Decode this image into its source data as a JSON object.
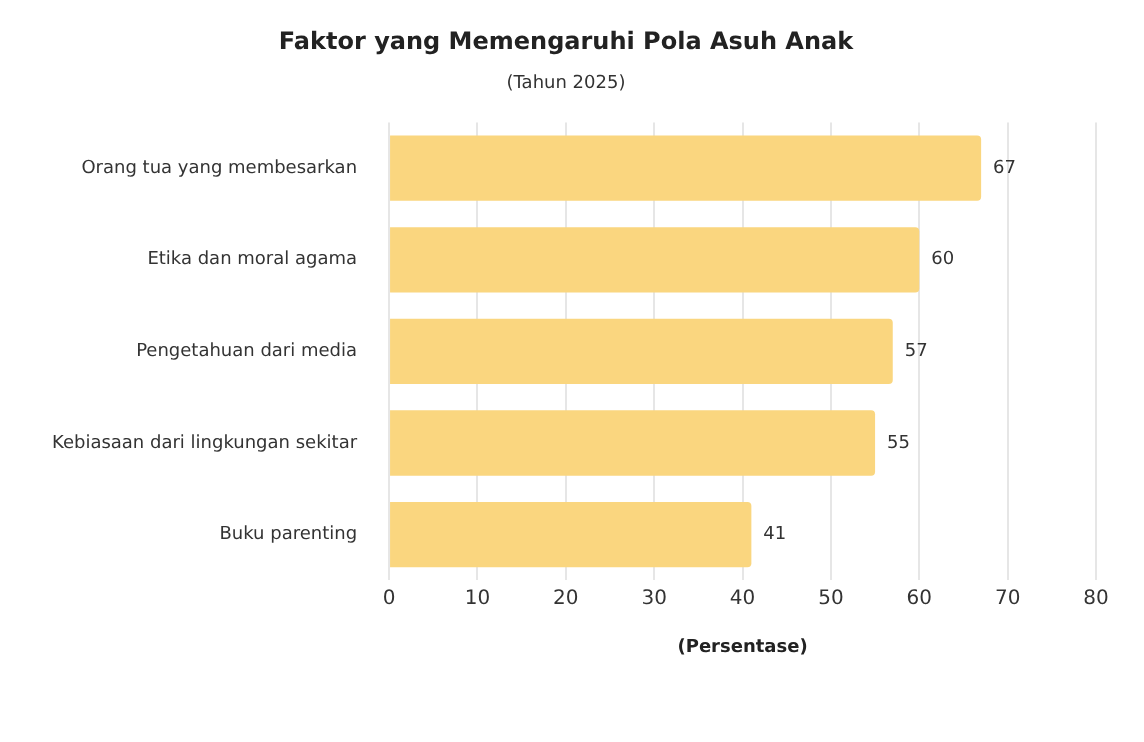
{
  "chart_data": {
    "type": "bar",
    "orientation": "horizontal",
    "title": "Faktor yang Memengaruhi Pola Asuh Anak",
    "subtitle": "(Tahun 2025)",
    "xlabel": "(Persentase)",
    "categories": [
      "Orang tua yang membesarkan",
      "Etika dan moral agama",
      "Pengetahuan dari media",
      "Kebiasaan dari lingkungan sekitar",
      "Buku parenting"
    ],
    "values": [
      67,
      60,
      57,
      55,
      41
    ],
    "color": "#fad67f",
    "xlim": [
      0,
      80
    ],
    "xticks": [
      0,
      10,
      20,
      30,
      40,
      50,
      60,
      70,
      80
    ],
    "grid": "x",
    "data_labels": true,
    "legend": false
  }
}
